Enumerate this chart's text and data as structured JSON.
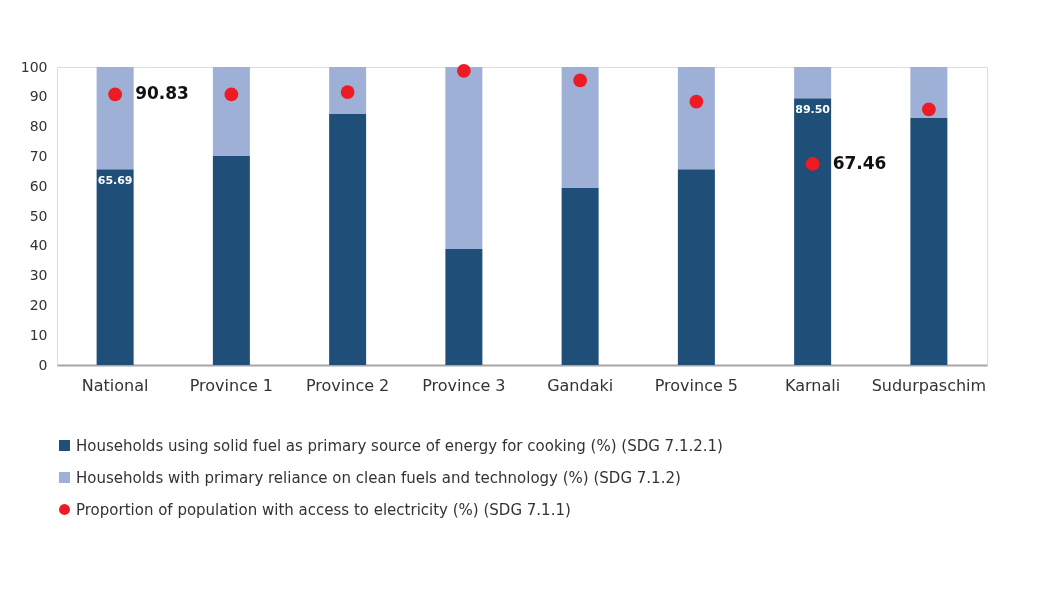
{
  "chart_data": {
    "type": "bar",
    "stacked": true,
    "categories": [
      "National",
      "Province 1",
      "Province 2",
      "Province 3",
      "Gandaki",
      "Province 5",
      "Karnali",
      "Sudurpaschim"
    ],
    "series": [
      {
        "name": "Households using solid fuel as primary source of energy for cooking (%) (SDG 7.1.2.1)",
        "color": "#1f4e79",
        "values": [
          65.69,
          70.1,
          84.2,
          38.9,
          59.4,
          65.7,
          89.5,
          82.9
        ],
        "value_labels": [
          "65.69",
          null,
          null,
          null,
          null,
          null,
          "89.50",
          null
        ]
      },
      {
        "name": "Households with primary reliance on clean fuels and technology (%) (SDG 7.1.2)",
        "color": "#9fb0d6",
        "values": [
          34.31,
          29.9,
          15.8,
          61.1,
          40.6,
          34.3,
          10.5,
          17.1
        ]
      },
      {
        "name": "Proportion of population with access to electricity (%) (SDG 7.1.1)",
        "type": "scatter",
        "color": "#ed1c24",
        "values": [
          90.83,
          90.8,
          91.6,
          98.7,
          95.5,
          88.4,
          67.46,
          85.8
        ],
        "value_labels": [
          "90.83",
          null,
          null,
          null,
          null,
          null,
          "67.46",
          null
        ]
      }
    ],
    "ylim": [
      0,
      100
    ],
    "yticks": [
      0,
      10,
      20,
      30,
      40,
      50,
      60,
      70,
      80,
      90,
      100
    ],
    "grid": false,
    "legend": "bottom",
    "marker": "circle"
  }
}
